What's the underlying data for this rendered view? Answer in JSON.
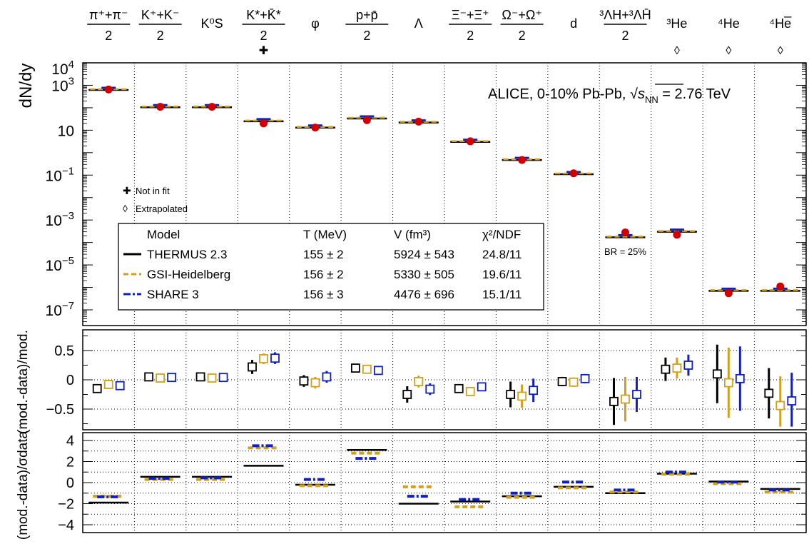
{
  "chart_data": {
    "type": "scatter",
    "title": "ALICE, 0-10% Pb-Pb, √sNN = 2.76 TeV",
    "energy_text": "= 2.76 TeV",
    "particles": [
      {
        "label": "(π⁺+π⁻)/2",
        "top": "π⁺+π⁻",
        "bottom": "2",
        "fraction": true,
        "marker": ""
      },
      {
        "label": "(K⁺+K⁻)/2",
        "top": "K⁺+K⁻",
        "bottom": "2",
        "fraction": true,
        "marker": ""
      },
      {
        "label": "K⁰S",
        "top": "K⁰S",
        "bottom": "",
        "fraction": false,
        "marker": ""
      },
      {
        "label": "(K*+K̄*)/2",
        "top": "K*+K̄*",
        "bottom": "2",
        "fraction": true,
        "marker": "✚"
      },
      {
        "label": "φ",
        "top": "φ",
        "bottom": "",
        "fraction": false,
        "marker": ""
      },
      {
        "label": "(p+p̄)/2",
        "top": "p+p̄",
        "bottom": "2",
        "fraction": true,
        "marker": ""
      },
      {
        "label": "Λ",
        "top": "Λ",
        "bottom": "",
        "fraction": false,
        "marker": ""
      },
      {
        "label": "(Ξ⁻+Ξ⁺)/2",
        "top": "Ξ⁻+Ξ⁺",
        "bottom": "2",
        "fraction": true,
        "marker": ""
      },
      {
        "label": "(Ω⁻+Ω⁺)/2",
        "top": "Ω⁻+Ω⁺",
        "bottom": "2",
        "fraction": true,
        "marker": ""
      },
      {
        "label": "d",
        "top": "d",
        "bottom": "",
        "fraction": false,
        "marker": ""
      },
      {
        "label": "(³ΛH+³ΛH̄)/2",
        "top": "³ΛH+³ΛH̄",
        "bottom": "2",
        "fraction": true,
        "marker": ""
      },
      {
        "label": "³He",
        "top": "³He",
        "bottom": "",
        "fraction": false,
        "marker": "◊"
      },
      {
        "label": "⁴He",
        "top": "⁴He",
        "bottom": "",
        "fraction": false,
        "marker": "◊"
      },
      {
        "label": "⁴He̅",
        "top": "⁴He̅",
        "bottom": "",
        "fraction": false,
        "marker": "◊"
      }
    ],
    "top_panel": {
      "ylabel": "dN/dy",
      "yscale": "log",
      "ylim": [
        1e-08,
        10000.0
      ],
      "yticks": [
        "10⁴",
        "10³",
        "10",
        "10⁻¹",
        "10⁻³",
        "10⁻⁵",
        "10⁻⁷"
      ],
      "ytick_values": [
        10000.0,
        1000.0,
        10,
        0.1,
        0.001,
        1e-05,
        1e-07
      ],
      "data_values": [
        650,
        110,
        110,
        20,
        13,
        28,
        24,
        3.2,
        0.47,
        0.12,
        0.00028,
        0.00022,
        5.5e-07,
        1.1e-06
      ],
      "model_values": [
        620,
        105,
        105,
        25,
        13,
        33,
        22,
        3.0,
        0.47,
        0.11,
        0.00017,
        0.0003,
        7e-07,
        7e-07
      ],
      "branching_note": "BR = 25%"
    },
    "mid_panel": {
      "ylabel": "(mod.-data)/mod.",
      "ylim": [
        -0.8,
        0.8
      ],
      "yticks": [
        "0.5",
        "0",
        "−0.5"
      ],
      "ytick_values": [
        0.5,
        0,
        -0.5
      ],
      "series": [
        {
          "name": "THERMUS 2.3",
          "values": [
            -0.15,
            0.05,
            0.05,
            0.22,
            -0.02,
            0.2,
            -0.25,
            -0.15,
            -0.25,
            -0.03,
            -0.37,
            0.18,
            0.1,
            -0.23
          ],
          "errors": [
            0.07,
            0.05,
            0.06,
            0.12,
            0.1,
            0.02,
            0.14,
            0.07,
            0.22,
            0.08,
            0.4,
            0.2,
            0.5,
            0.43
          ]
        },
        {
          "name": "GSI-Heidelberg",
          "values": [
            -0.08,
            0.03,
            0.03,
            0.36,
            -0.05,
            0.18,
            -0.03,
            -0.2,
            -0.28,
            -0.04,
            -0.33,
            0.2,
            -0.05,
            -0.44
          ],
          "errors": [
            0.05,
            0.05,
            0.05,
            0.09,
            0.1,
            0.02,
            0.1,
            0.05,
            0.2,
            0.08,
            0.38,
            0.18,
            0.6,
            0.5
          ]
        },
        {
          "name": "SHARE 3",
          "values": [
            -0.1,
            0.04,
            0.04,
            0.37,
            0.05,
            0.16,
            -0.16,
            -0.12,
            -0.18,
            0.02,
            -0.25,
            0.25,
            0.02,
            -0.36
          ],
          "errors": [
            0.06,
            0.05,
            0.06,
            0.1,
            0.1,
            0.03,
            0.1,
            0.06,
            0.2,
            0.08,
            0.3,
            0.18,
            0.55,
            0.48
          ]
        }
      ]
    },
    "bottom_panel": {
      "ylabel": "(mod.-data)/σdata",
      "ylim": [
        -4.7,
        4.7
      ],
      "yticks": [
        "4",
        "2",
        "0",
        "−2",
        "−4"
      ],
      "ytick_values": [
        4,
        2,
        0,
        -2,
        -4
      ],
      "series": [
        {
          "name": "THERMUS 2.3",
          "values": [
            -1.9,
            0.55,
            0.55,
            1.6,
            -0.2,
            3.1,
            -2.0,
            -1.8,
            -1.3,
            -0.4,
            -1.0,
            0.85,
            0.1,
            -0.6
          ]
        },
        {
          "name": "GSI-Heidelberg",
          "values": [
            -1.3,
            0.3,
            0.3,
            3.3,
            -0.3,
            2.8,
            -0.4,
            -2.3,
            -1.4,
            -0.5,
            -0.9,
            0.8,
            -0.1,
            -0.9
          ]
        },
        {
          "name": "SHARE 3",
          "values": [
            -1.35,
            0.4,
            0.45,
            3.5,
            0.3,
            2.3,
            -1.3,
            -1.6,
            -1.0,
            0.05,
            -0.7,
            1.0,
            0.05,
            -0.7
          ]
        }
      ]
    },
    "legend": {
      "headers": [
        "Model",
        "T (MeV)",
        "V (fm³)",
        "χ²/NDF"
      ],
      "rows": [
        {
          "model": "THERMUS 2.3",
          "T": "155 ± 2",
          "V": "5924 ± 543",
          "chi2": "24.8/11"
        },
        {
          "model": "GSI-Heidelberg",
          "T": "156 ± 2",
          "V": "5330 ± 505",
          "chi2": "19.6/11"
        },
        {
          "model": "SHARE 3",
          "T": "156 ± 3",
          "V": "4476 ± 696",
          "chi2": "15.1/11"
        }
      ],
      "not_in_fit": "Not in fit",
      "extrapolated": "Extrapolated"
    },
    "colors": {
      "THERMUS 2.3": "#000000",
      "GSI-Heidelberg": "#d4a017",
      "SHARE 3": "#1020c0",
      "data": "#d00000"
    }
  }
}
